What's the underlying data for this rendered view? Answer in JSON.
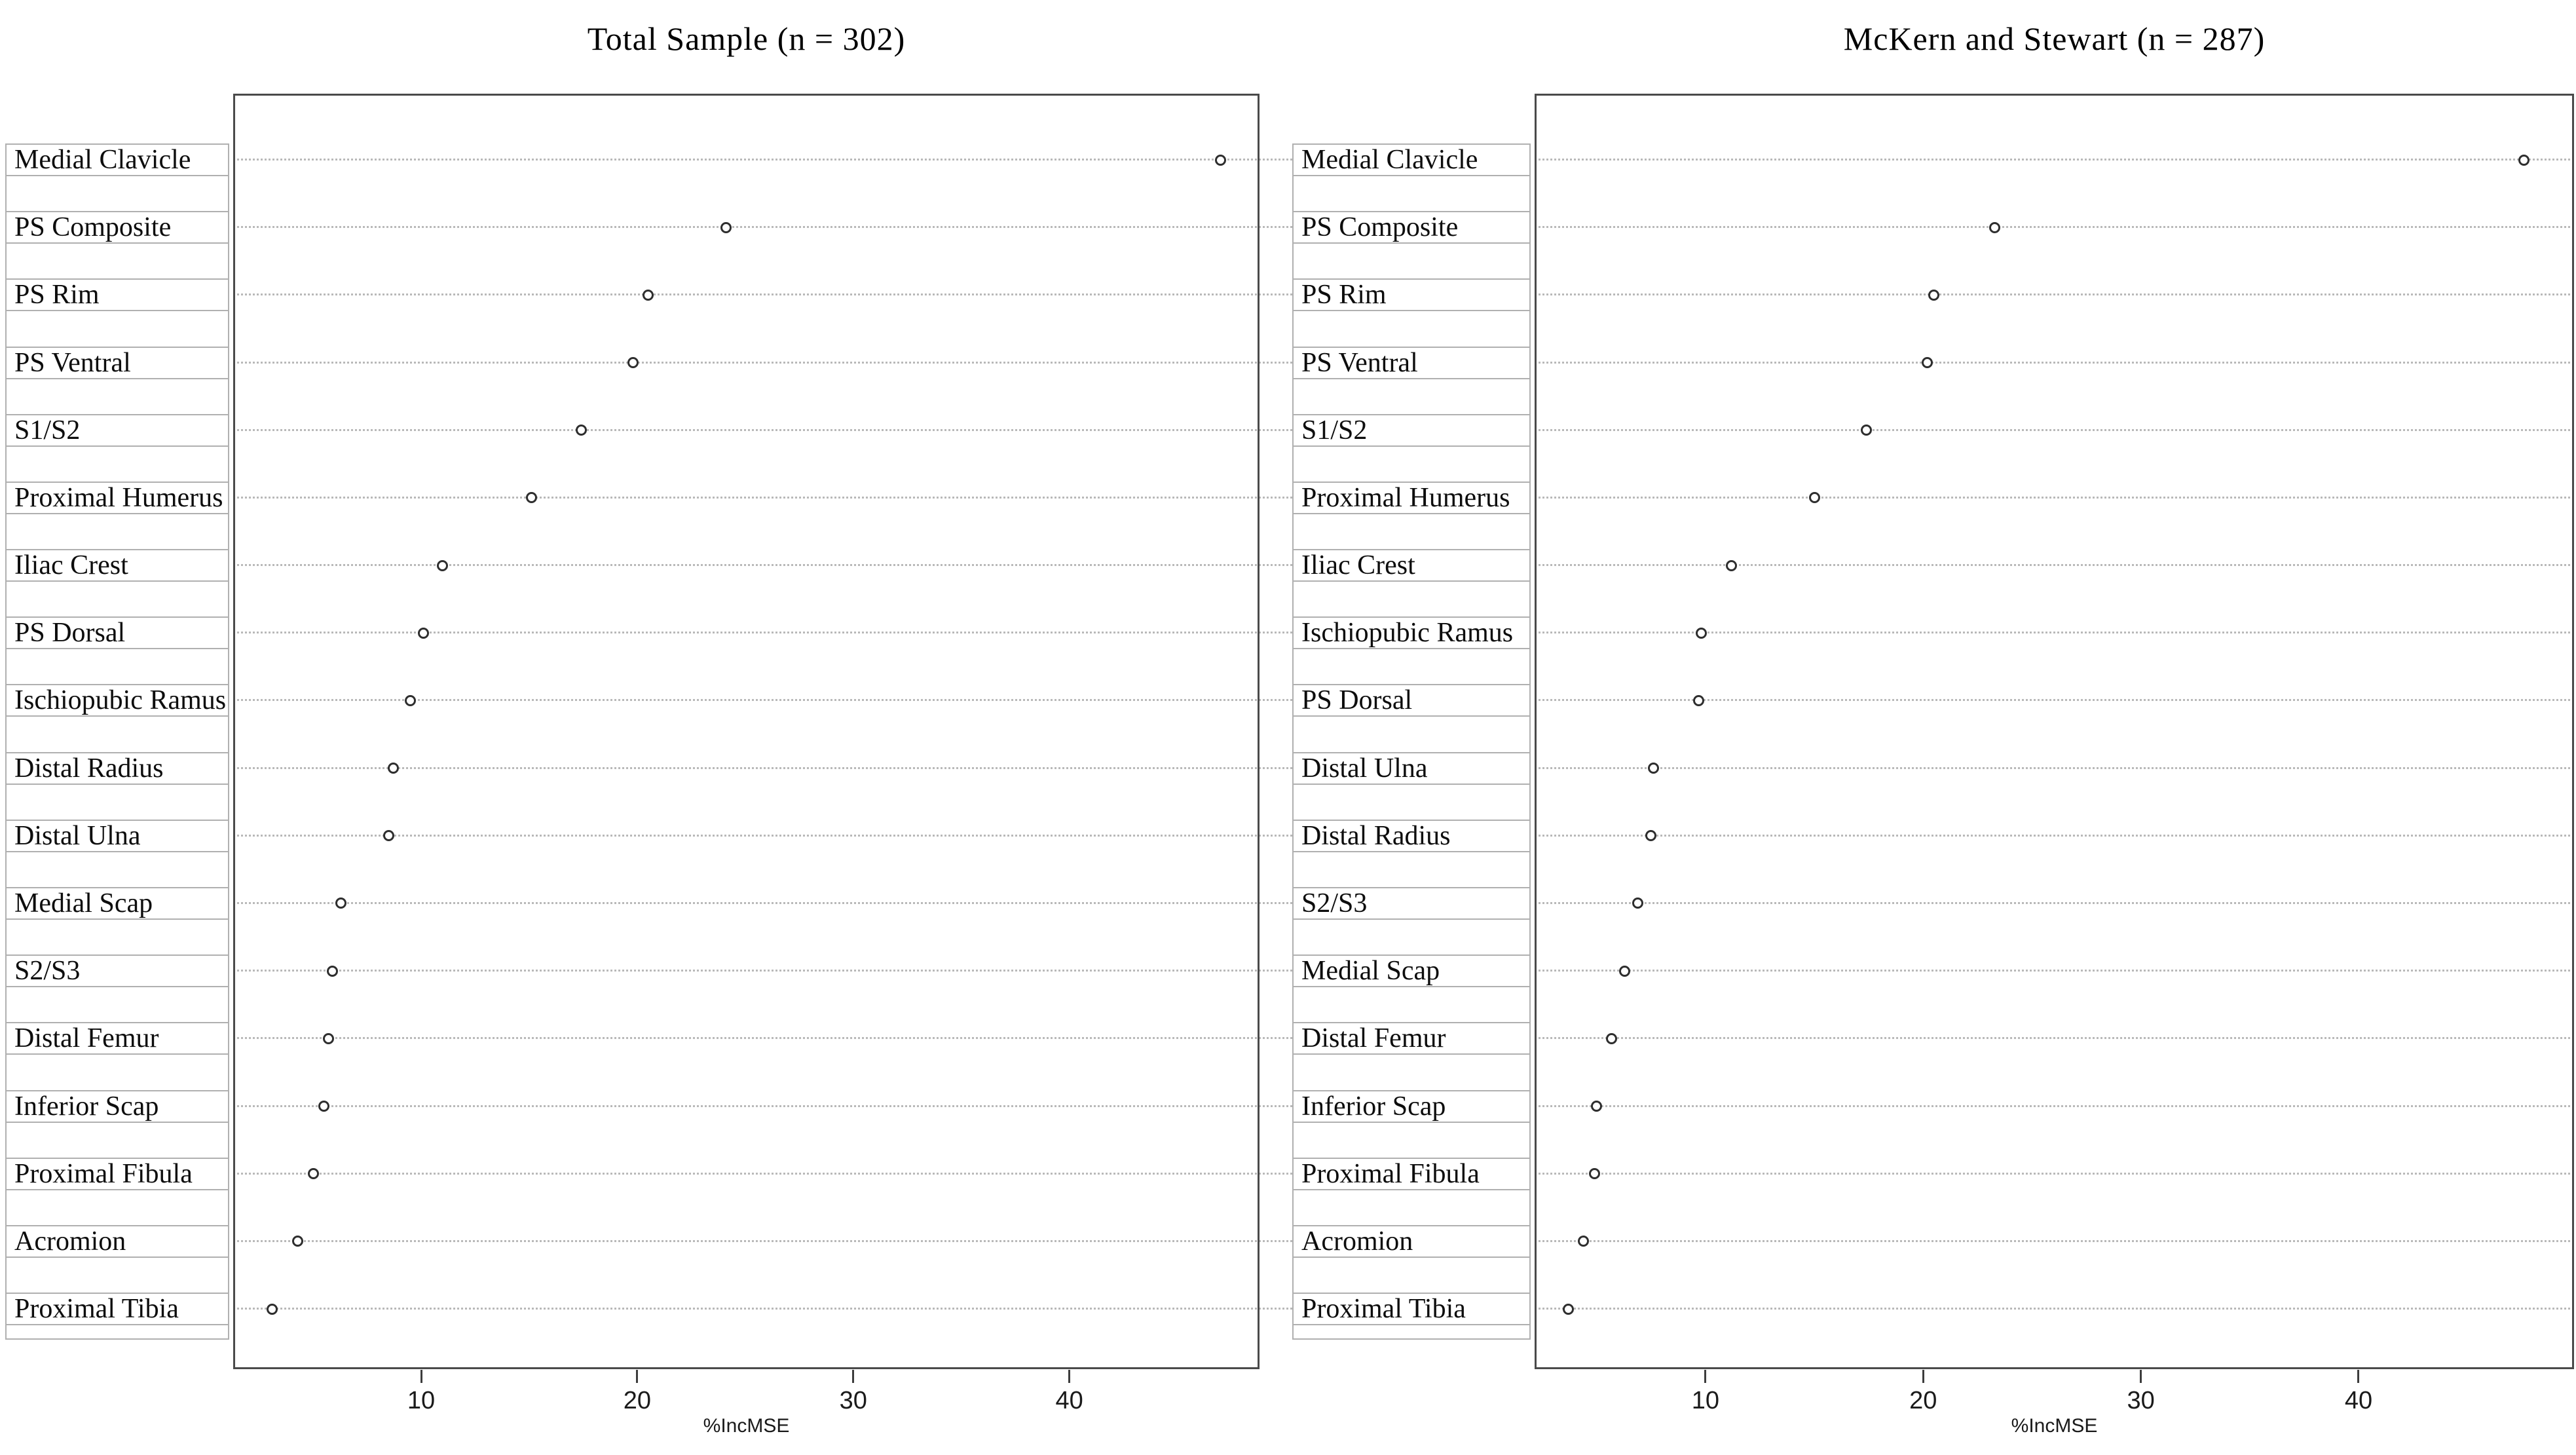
{
  "page": {
    "background": "#ffffff"
  },
  "colors": {
    "plot_border": "#4a4a4a",
    "cell_border": "#b0b0b0",
    "gridline": "#b9b9b9",
    "dot_stroke": "#2e2e2e",
    "text": "#111111",
    "background": "#ffffff"
  },
  "chart_data": [
    {
      "type": "scatter",
      "variant": "dot-plot-variable-importance",
      "title": "Total Sample (n = 302)",
      "xlabel": "%IncMSE",
      "categories": [
        "Medial Clavicle",
        "PS Composite",
        "PS Rim",
        "PS Ventral",
        "S1/S2",
        "Proximal Humerus",
        "Iliac Crest",
        "PS Dorsal",
        "Ischiopubic Ramus",
        "Distal Radius",
        "Distal Ulna",
        "Medial Scap",
        "S2/S3",
        "Distal Femur",
        "Inferior Scap",
        "Proximal Fibula",
        "Acromion",
        "Proximal Tibia"
      ],
      "values": [
        47.0,
        24.1,
        20.5,
        19.8,
        17.4,
        15.1,
        11.0,
        10.1,
        9.5,
        8.7,
        8.5,
        6.3,
        5.9,
        5.7,
        5.5,
        5.0,
        4.3,
        3.1
      ],
      "xlim": [
        1.3,
        48.8
      ],
      "xticks": [
        10,
        20,
        30,
        40
      ],
      "grid": "dotted-horizontal",
      "legend": "none",
      "marker": "open-circle"
    },
    {
      "type": "scatter",
      "variant": "dot-plot-variable-importance",
      "title": "McKern and Stewart (n = 287)",
      "xlabel": "%IncMSE",
      "categories": [
        "Medial Clavicle",
        "PS Composite",
        "PS Rim",
        "PS Ventral",
        "S1/S2",
        "Proximal Humerus",
        "Iliac Crest",
        "Ischiopubic Ramus",
        "PS Dorsal",
        "Distal Ulna",
        "Distal Radius",
        "S2/S3",
        "Medial Scap",
        "Distal Femur",
        "Inferior Scap",
        "Proximal Fibula",
        "Acromion",
        "Proximal Tibia"
      ],
      "values": [
        47.6,
        23.3,
        20.5,
        20.2,
        17.4,
        15.0,
        11.2,
        9.8,
        9.7,
        7.6,
        7.5,
        6.9,
        6.3,
        5.7,
        5.0,
        4.9,
        4.4,
        3.7
      ],
      "xlim": [
        2.15,
        49.9
      ],
      "xticks": [
        10,
        20,
        30,
        40
      ],
      "grid": "dotted-horizontal",
      "legend": "none",
      "marker": "open-circle"
    }
  ]
}
